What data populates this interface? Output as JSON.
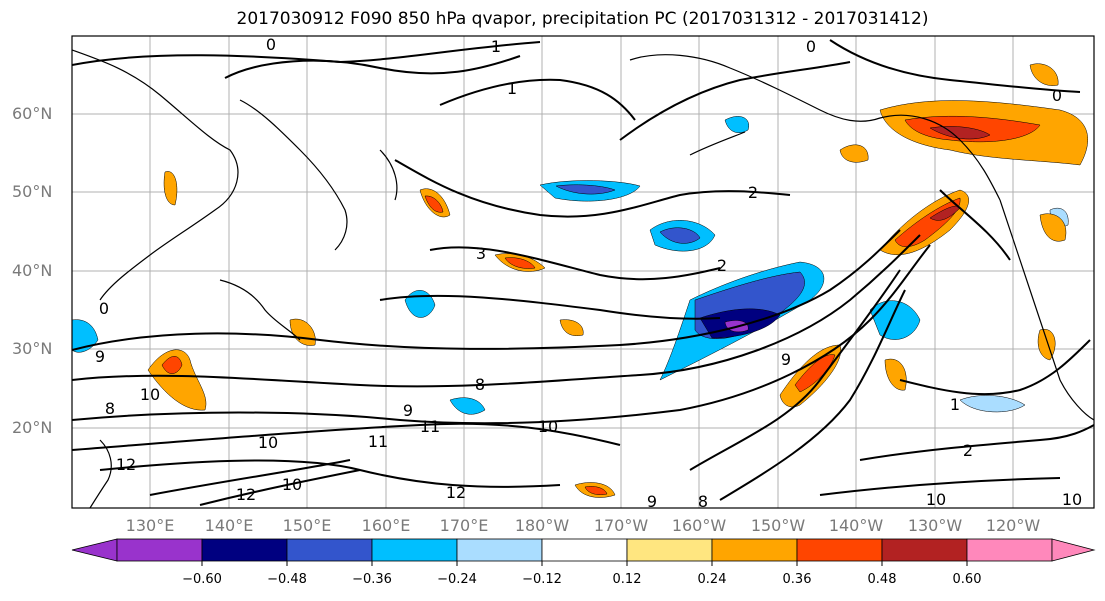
{
  "title": "2017030912 F090 850 hPa qvapor, precipitation PC (2017031312 - 2017031412)",
  "map": {
    "lat_labels": [
      "60°N",
      "50°N",
      "40°N",
      "30°N",
      "20°N"
    ],
    "lon_labels": [
      "130°E",
      "140°E",
      "150°E",
      "160°E",
      "170°E",
      "180°W",
      "170°W",
      "160°W",
      "150°W",
      "140°W",
      "130°W",
      "120°W"
    ],
    "contour_labels": [
      "0",
      "1",
      "1",
      "0",
      "0",
      "2",
      "3",
      "2",
      "9",
      "8",
      "9",
      "10",
      "11",
      "10",
      "11",
      "12",
      "10",
      "10",
      "12",
      "9",
      "8",
      "10",
      "12",
      "10",
      "9",
      "2",
      "1",
      "8",
      "0"
    ]
  },
  "colorbar": {
    "ticks": [
      "−0.60",
      "−0.48",
      "−0.36",
      "−0.24",
      "−0.12",
      "0.12",
      "0.24",
      "0.36",
      "0.48",
      "0.60"
    ],
    "colors": [
      "#9933cc",
      "#000080",
      "#3355cc",
      "#00bfff",
      "#aaddff",
      "#ffffff",
      "#ffe680",
      "#ffa500",
      "#ff4500",
      "#b22222",
      "#ff88bb"
    ]
  }
}
